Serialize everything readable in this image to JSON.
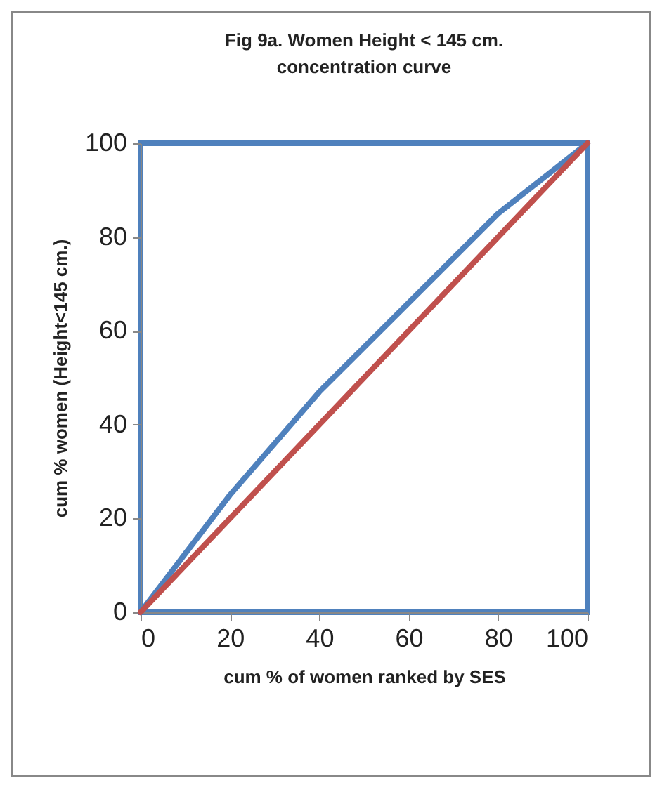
{
  "chart_data": {
    "type": "line",
    "title": "Fig 9a. Women  Height < 145 cm.",
    "subtitle": "concentration curve",
    "xlabel": "cum %  of women ranked by SES",
    "ylabel": "cum % women (Height<145  cm.)",
    "xlim": [
      0,
      100
    ],
    "ylim": [
      0,
      100
    ],
    "xticks": [
      0,
      20,
      40,
      60,
      80,
      100
    ],
    "yticks": [
      0,
      20,
      40,
      60,
      80,
      100
    ],
    "grid": false,
    "marker": "none",
    "line_style": "solid",
    "series": [
      {
        "color": "#4f81bd",
        "x": [
          0,
          20,
          40,
          60,
          80,
          100
        ],
        "values": [
          0,
          25,
          47,
          66,
          85,
          100
        ]
      },
      {
        "color": "#c0504d",
        "x": [
          0,
          100
        ],
        "values": [
          0,
          100
        ]
      }
    ]
  }
}
